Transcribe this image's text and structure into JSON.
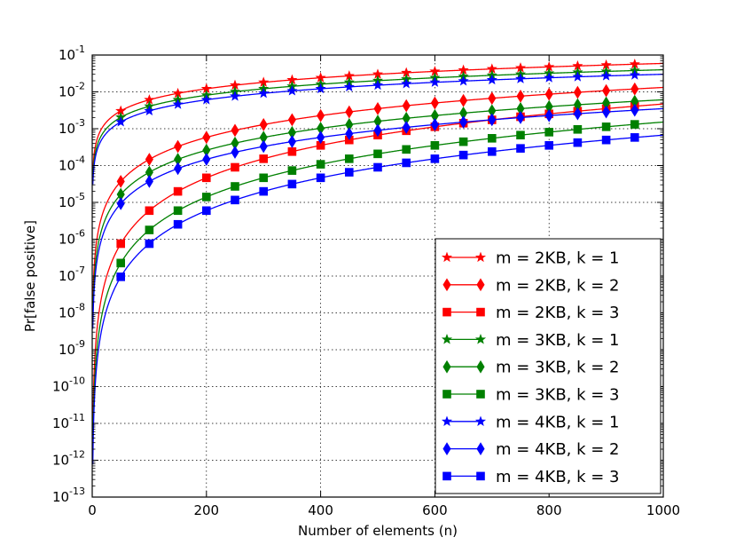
{
  "chart_data": {
    "type": "line",
    "title": "",
    "xlabel": "Number of elements (n)",
    "ylabel": "Pr[false positive]",
    "xlim": [
      0,
      1000
    ],
    "ylog_exponent_range": [
      -13,
      -1
    ],
    "y_scale": "log",
    "grid": true,
    "legend_position": "lower-right",
    "x_ticks": [
      "0",
      "200",
      "400",
      "600",
      "800",
      "1000"
    ],
    "y_tick_base": "10",
    "y_ticks": [
      "-13",
      "-12",
      "-11",
      "-10",
      "-9",
      "-8",
      "-7",
      "-6",
      "-5",
      "-4",
      "-3",
      "-2",
      "-1"
    ],
    "formula": "(1 - exp(-k*n/m_bits))^k",
    "series": [
      {
        "name": "m = 2KB, k = 1",
        "m_bits": 16384,
        "k": 1,
        "color": "#ff0000",
        "marker": "star"
      },
      {
        "name": "m = 2KB, k = 2",
        "m_bits": 16384,
        "k": 2,
        "color": "#ff0000",
        "marker": "diamond"
      },
      {
        "name": "m = 2KB, k = 3",
        "m_bits": 16384,
        "k": 3,
        "color": "#ff0000",
        "marker": "square"
      },
      {
        "name": "m = 3KB, k = 1",
        "m_bits": 24576,
        "k": 1,
        "color": "#008000",
        "marker": "star"
      },
      {
        "name": "m = 3KB, k = 2",
        "m_bits": 24576,
        "k": 2,
        "color": "#008000",
        "marker": "diamond"
      },
      {
        "name": "m = 3KB, k = 3",
        "m_bits": 24576,
        "k": 3,
        "color": "#008000",
        "marker": "square"
      },
      {
        "name": "m = 4KB, k = 1",
        "m_bits": 32768,
        "k": 1,
        "color": "#0000ff",
        "marker": "star"
      },
      {
        "name": "m = 4KB, k = 2",
        "m_bits": 32768,
        "k": 2,
        "color": "#0000ff",
        "marker": "diamond"
      },
      {
        "name": "m = 4KB, k = 3",
        "m_bits": 32768,
        "k": 3,
        "color": "#0000ff",
        "marker": "square"
      }
    ],
    "marker_x": [
      50,
      100,
      150,
      200,
      250,
      300,
      350,
      400,
      450,
      500,
      550,
      600,
      650,
      700,
      750,
      800,
      850,
      900,
      950
    ]
  }
}
